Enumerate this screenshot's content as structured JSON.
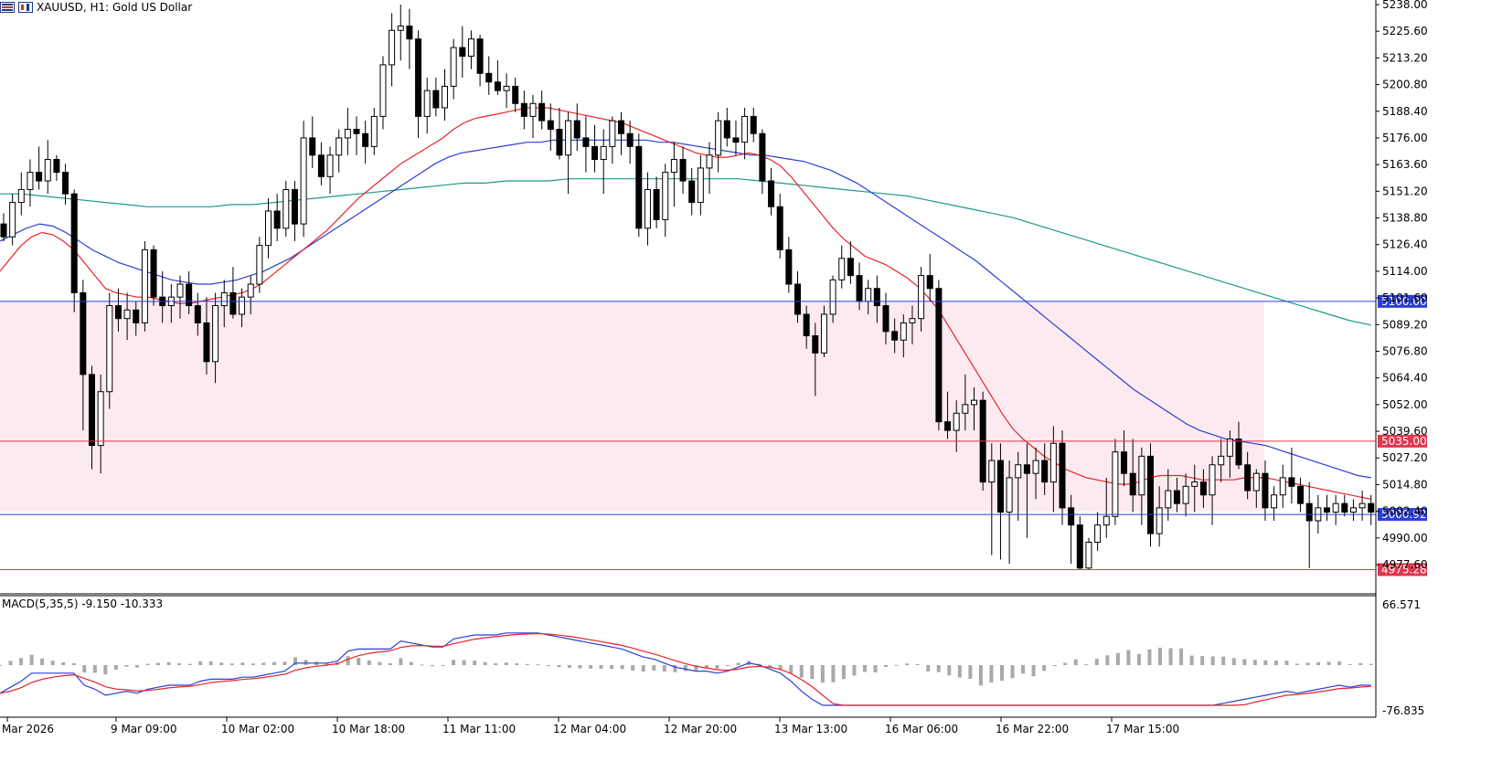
{
  "window": {
    "symbol_title": "XAUUSD, H1:  Gold US Dollar"
  },
  "colors": {
    "candle_up": "#ffffff",
    "candle_down": "#000000",
    "ma_fast": "#e8232b",
    "ma_mid": "#2b3fd6",
    "ma_slow": "#1b9b86",
    "zone_fill": "#fdeaf0",
    "level_blue": "#2b3fd6",
    "level_red": "#e0374e",
    "macd_line": "#2b3fd6",
    "macd_signal": "#e8232b",
    "macd_hist": "#a9a9a9"
  },
  "price_axis": {
    "ticks": [
      "5238.00",
      "5225.60",
      "5213.20",
      "5200.80",
      "5188.40",
      "5176.00",
      "5163.60",
      "5151.20",
      "5138.80",
      "5126.40",
      "5114.00",
      "5101.60",
      "5089.20",
      "5076.80",
      "5064.40",
      "5052.00",
      "5039.60",
      "5027.20",
      "5014.80",
      "5002.40",
      "4990.00",
      "4977.60"
    ]
  },
  "levels": [
    {
      "price": 5100.0,
      "label": "5100.00",
      "color": "#2b3fd6"
    },
    {
      "price": 5035.0,
      "label": "5035.00",
      "color": "#e0374e"
    },
    {
      "price": 5000.92,
      "label": "5000.92",
      "color": "#2b3fd6"
    },
    {
      "price": 4975.28,
      "label": "4975.28",
      "color": "#e0374e"
    }
  ],
  "zone": {
    "top": 5100.0,
    "bottom": 5002.4
  },
  "time_axis": {
    "labels": [
      "Mar 2026",
      "9 Mar 09:00",
      "10 Mar 02:00",
      "10 Mar 18:00",
      "11 Mar 11:00",
      "12 Mar 04:00",
      "12 Mar 20:00",
      "13 Mar 13:00",
      "16 Mar 06:00",
      "16 Mar 22:00",
      "17 Mar 15:00"
    ]
  },
  "macd": {
    "label": "MACD(5,35,5) -9.150 -10.333",
    "ticks": [
      "66.571",
      "-76.835"
    ]
  },
  "chart_data": {
    "type": "candlestick",
    "title": "XAUUSD, H1:  Gold US Dollar",
    "ylim": [
      4970.0,
      5240.0
    ],
    "candles": [
      [
        5136,
        5141,
        5128,
        5130
      ],
      [
        5130,
        5150,
        5126,
        5146
      ],
      [
        5146,
        5160,
        5140,
        5152
      ],
      [
        5152,
        5166,
        5144,
        5160
      ],
      [
        5160,
        5172,
        5152,
        5156
      ],
      [
        5156,
        5175,
        5150,
        5166
      ],
      [
        5166,
        5168,
        5156,
        5160
      ],
      [
        5160,
        5164,
        5145,
        5150
      ],
      [
        5150,
        5152,
        5095,
        5104
      ],
      [
        5104,
        5110,
        5040,
        5066
      ],
      [
        5066,
        5070,
        5022,
        5033
      ],
      [
        5033,
        5066,
        5020,
        5058
      ],
      [
        5058,
        5104,
        5050,
        5098
      ],
      [
        5098,
        5106,
        5086,
        5092
      ],
      [
        5092,
        5104,
        5082,
        5096
      ],
      [
        5096,
        5100,
        5084,
        5090
      ],
      [
        5090,
        5128,
        5086,
        5124
      ],
      [
        5124,
        5126,
        5098,
        5102
      ],
      [
        5102,
        5114,
        5090,
        5098
      ],
      [
        5098,
        5108,
        5090,
        5102
      ],
      [
        5102,
        5112,
        5092,
        5108
      ],
      [
        5108,
        5114,
        5094,
        5098
      ],
      [
        5098,
        5104,
        5084,
        5090
      ],
      [
        5090,
        5102,
        5066,
        5072
      ],
      [
        5072,
        5104,
        5062,
        5098
      ],
      [
        5098,
        5110,
        5088,
        5104
      ],
      [
        5104,
        5116,
        5092,
        5094
      ],
      [
        5094,
        5106,
        5088,
        5102
      ],
      [
        5102,
        5112,
        5094,
        5108
      ],
      [
        5108,
        5130,
        5104,
        5126
      ],
      [
        5126,
        5148,
        5120,
        5142
      ],
      [
        5142,
        5150,
        5128,
        5134
      ],
      [
        5134,
        5156,
        5130,
        5152
      ],
      [
        5152,
        5156,
        5128,
        5136
      ],
      [
        5136,
        5184,
        5130,
        5176
      ],
      [
        5176,
        5186,
        5162,
        5168
      ],
      [
        5168,
        5174,
        5154,
        5158
      ],
      [
        5158,
        5172,
        5150,
        5168
      ],
      [
        5168,
        5180,
        5160,
        5176
      ],
      [
        5176,
        5190,
        5168,
        5180
      ],
      [
        5180,
        5186,
        5168,
        5178
      ],
      [
        5178,
        5184,
        5164,
        5172
      ],
      [
        5172,
        5190,
        5168,
        5186
      ],
      [
        5186,
        5214,
        5180,
        5210
      ],
      [
        5210,
        5234,
        5200,
        5226
      ],
      [
        5226,
        5238,
        5212,
        5228
      ],
      [
        5228,
        5236,
        5208,
        5222
      ],
      [
        5222,
        5226,
        5176,
        5186
      ],
      [
        5186,
        5204,
        5178,
        5198
      ],
      [
        5198,
        5204,
        5186,
        5190
      ],
      [
        5190,
        5208,
        5184,
        5200
      ],
      [
        5200,
        5222,
        5194,
        5218
      ],
      [
        5218,
        5228,
        5204,
        5214
      ],
      [
        5214,
        5226,
        5208,
        5222
      ],
      [
        5222,
        5224,
        5200,
        5206
      ],
      [
        5206,
        5214,
        5196,
        5202
      ],
      [
        5202,
        5212,
        5196,
        5198
      ],
      [
        5198,
        5206,
        5190,
        5200
      ],
      [
        5200,
        5204,
        5188,
        5192
      ],
      [
        5192,
        5198,
        5180,
        5186
      ],
      [
        5186,
        5196,
        5176,
        5192
      ],
      [
        5192,
        5198,
        5180,
        5184
      ],
      [
        5184,
        5192,
        5170,
        5180
      ],
      [
        5180,
        5190,
        5166,
        5168
      ],
      [
        5168,
        5188,
        5150,
        5184
      ],
      [
        5184,
        5192,
        5170,
        5176
      ],
      [
        5176,
        5186,
        5160,
        5172
      ],
      [
        5172,
        5182,
        5160,
        5166
      ],
      [
        5166,
        5180,
        5150,
        5172
      ],
      [
        5172,
        5186,
        5164,
        5184
      ],
      [
        5184,
        5188,
        5168,
        5178
      ],
      [
        5178,
        5184,
        5164,
        5172
      ],
      [
        5172,
        5178,
        5130,
        5134
      ],
      [
        5134,
        5160,
        5126,
        5152
      ],
      [
        5152,
        5158,
        5134,
        5138
      ],
      [
        5138,
        5164,
        5130,
        5160
      ],
      [
        5160,
        5174,
        5144,
        5166
      ],
      [
        5166,
        5172,
        5150,
        5156
      ],
      [
        5156,
        5162,
        5140,
        5146
      ],
      [
        5146,
        5168,
        5140,
        5162
      ],
      [
        5162,
        5174,
        5150,
        5168
      ],
      [
        5168,
        5188,
        5160,
        5184
      ],
      [
        5184,
        5190,
        5172,
        5176
      ],
      [
        5176,
        5184,
        5168,
        5174
      ],
      [
        5174,
        5190,
        5166,
        5186
      ],
      [
        5186,
        5190,
        5174,
        5178
      ],
      [
        5178,
        5180,
        5150,
        5156
      ],
      [
        5156,
        5162,
        5140,
        5144
      ],
      [
        5144,
        5150,
        5120,
        5124
      ],
      [
        5124,
        5130,
        5104,
        5108
      ],
      [
        5108,
        5114,
        5090,
        5094
      ],
      [
        5094,
        5098,
        5078,
        5084
      ],
      [
        5084,
        5090,
        5056,
        5076
      ],
      [
        5076,
        5098,
        5074,
        5094
      ],
      [
        5094,
        5112,
        5090,
        5110
      ],
      [
        5110,
        5126,
        5106,
        5120
      ],
      [
        5120,
        5128,
        5108,
        5112
      ],
      [
        5112,
        5118,
        5096,
        5100
      ],
      [
        5100,
        5110,
        5094,
        5106
      ],
      [
        5106,
        5112,
        5090,
        5098
      ],
      [
        5098,
        5104,
        5080,
        5086
      ],
      [
        5086,
        5092,
        5076,
        5082
      ],
      [
        5082,
        5094,
        5074,
        5090
      ],
      [
        5090,
        5098,
        5080,
        5092
      ],
      [
        5092,
        5116,
        5086,
        5112
      ],
      [
        5112,
        5122,
        5100,
        5106
      ],
      [
        5106,
        5110,
        5040,
        5044
      ],
      [
        5044,
        5058,
        5036,
        5040
      ],
      [
        5040,
        5054,
        5030,
        5048
      ],
      [
        5048,
        5066,
        5040,
        5052
      ],
      [
        5052,
        5060,
        5040,
        5054
      ],
      [
        5054,
        5058,
        5012,
        5016
      ],
      [
        5016,
        5034,
        4982,
        5026
      ],
      [
        5026,
        5034,
        4980,
        5002
      ],
      [
        5002,
        5026,
        4978,
        5018
      ],
      [
        5018,
        5030,
        4998,
        5024
      ],
      [
        5024,
        5034,
        4990,
        5020
      ],
      [
        5020,
        5032,
        5008,
        5026
      ],
      [
        5026,
        5034,
        5010,
        5016
      ],
      [
        5016,
        5042,
        5002,
        5034
      ],
      [
        5034,
        5040,
        4996,
        5004
      ],
      [
        5004,
        5010,
        4978,
        4996
      ],
      [
        4996,
        5000,
        4975,
        4976
      ],
      [
        4976,
        4990,
        4975,
        4988
      ],
      [
        4988,
        5002,
        4984,
        4996
      ],
      [
        4996,
        5018,
        4990,
        5000
      ],
      [
        5000,
        5036,
        4996,
        5030
      ],
      [
        5030,
        5040,
        5014,
        5020
      ],
      [
        5020,
        5036,
        5002,
        5010
      ],
      [
        5010,
        5032,
        4996,
        5028
      ],
      [
        5028,
        5034,
        4986,
        4992
      ],
      [
        4992,
        5014,
        4986,
        5004
      ],
      [
        5004,
        5022,
        4998,
        5012
      ],
      [
        5012,
        5018,
        5002,
        5006
      ],
      [
        5006,
        5020,
        5000,
        5014
      ],
      [
        5014,
        5024,
        5002,
        5016
      ],
      [
        5016,
        5022,
        5004,
        5010
      ],
      [
        5010,
        5028,
        4996,
        5024
      ],
      [
        5024,
        5036,
        5016,
        5028
      ],
      [
        5028,
        5040,
        5018,
        5036
      ],
      [
        5036,
        5044,
        5022,
        5024
      ],
      [
        5024,
        5030,
        5008,
        5012
      ],
      [
        5012,
        5022,
        5004,
        5020
      ],
      [
        5020,
        5026,
        4998,
        5004
      ],
      [
        5004,
        5014,
        4998,
        5010
      ],
      [
        5010,
        5024,
        5004,
        5018
      ],
      [
        5018,
        5032,
        5006,
        5014
      ],
      [
        5014,
        5018,
        5002,
        5006
      ],
      [
        5006,
        5016,
        4976,
        4998
      ],
      [
        4998,
        5010,
        4992,
        5004
      ],
      [
        5004,
        5010,
        4998,
        5002
      ],
      [
        5002,
        5010,
        4996,
        5006
      ],
      [
        5006,
        5010,
        5000,
        5002
      ],
      [
        5002,
        5008,
        4998,
        5004
      ],
      [
        5004,
        5012,
        4998,
        5006
      ],
      [
        5006,
        5010,
        4996,
        5002
      ]
    ],
    "ma_fast": [
      5114,
      5120,
      5126,
      5130,
      5132,
      5131,
      5128,
      5124,
      5118,
      5112,
      5106,
      5104,
      5103,
      5102,
      5102,
      5101,
      5100,
      5099,
      5099,
      5100,
      5101,
      5102,
      5103,
      5104,
      5106,
      5109,
      5113,
      5117,
      5121,
      5125,
      5129,
      5133,
      5138,
      5143,
      5148,
      5152,
      5156,
      5160,
      5164,
      5167,
      5170,
      5173,
      5176,
      5180,
      5183,
      5185,
      5186,
      5187,
      5188,
      5189,
      5190,
      5190,
      5190,
      5189,
      5188,
      5187,
      5186,
      5185,
      5184,
      5183,
      5181,
      5179,
      5177,
      5175,
      5173,
      5171,
      5169,
      5168,
      5167,
      5167,
      5168,
      5169,
      5168,
      5166,
      5163,
      5158,
      5152,
      5146,
      5140,
      5134,
      5129,
      5125,
      5121,
      5119,
      5117,
      5114,
      5111,
      5107,
      5102,
      5096,
      5088,
      5080,
      5072,
      5064,
      5056,
      5048,
      5041,
      5036,
      5032,
      5028,
      5025,
      5022,
      5020,
      5018,
      5017,
      5016,
      5015,
      5015,
      5016,
      5018,
      5019,
      5019,
      5019,
      5018,
      5017,
      5017,
      5017,
      5017,
      5018,
      5018,
      5018,
      5017,
      5016,
      5015,
      5014,
      5013,
      5012,
      5011,
      5010,
      5009,
      5008
    ],
    "ma_mid": [
      5128,
      5131,
      5134,
      5136,
      5135,
      5132,
      5128,
      5124,
      5121,
      5118,
      5116,
      5114,
      5112,
      5110,
      5109,
      5108,
      5108,
      5109,
      5110,
      5112,
      5114,
      5117,
      5120,
      5124,
      5128,
      5132,
      5136,
      5140,
      5144,
      5148,
      5152,
      5156,
      5160,
      5164,
      5167,
      5169,
      5170,
      5171,
      5172,
      5173,
      5174,
      5174,
      5175,
      5175,
      5175,
      5175,
      5175,
      5175,
      5175,
      5175,
      5174,
      5174,
      5173,
      5172,
      5171,
      5170,
      5169,
      5168,
      5168,
      5167,
      5166,
      5165,
      5163,
      5161,
      5158,
      5155,
      5151,
      5147,
      5143,
      5139,
      5135,
      5131,
      5127,
      5123,
      5119,
      5114,
      5109,
      5104,
      5099,
      5094,
      5089,
      5084,
      5079,
      5074,
      5069,
      5064,
      5059,
      5055,
      5051,
      5047,
      5043,
      5040,
      5038,
      5036,
      5035,
      5034,
      5033,
      5031,
      5029,
      5027,
      5025,
      5023,
      5021,
      5019,
      5018
    ],
    "ma_slow": [
      5150,
      5150,
      5149,
      5148,
      5147,
      5146,
      5145,
      5144,
      5144,
      5144,
      5144,
      5145,
      5145,
      5146,
      5147,
      5148,
      5149,
      5150,
      5151,
      5152,
      5153,
      5154,
      5155,
      5155,
      5156,
      5156,
      5156,
      5157,
      5157,
      5157,
      5157,
      5157,
      5157,
      5157,
      5157,
      5157,
      5156,
      5155,
      5154,
      5153,
      5152,
      5151,
      5150,
      5149,
      5147,
      5145,
      5143,
      5141,
      5139,
      5136,
      5133,
      5130,
      5127,
      5124,
      5121,
      5118,
      5115,
      5112,
      5109,
      5106,
      5103,
      5100,
      5097,
      5094,
      5091,
      5089
    ]
  }
}
